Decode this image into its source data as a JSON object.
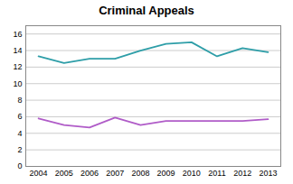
{
  "chart_data": {
    "type": "line",
    "title": "Criminal Appeals",
    "x": [
      2004,
      2005,
      2006,
      2007,
      2008,
      2009,
      2010,
      2011,
      2012,
      2013
    ],
    "series": [
      {
        "color": "#2E9EA8",
        "values": [
          13.3,
          12.5,
          13.0,
          13.0,
          14.0,
          14.8,
          15.0,
          13.3,
          14.3,
          13.8
        ]
      },
      {
        "color": "#B05CC8",
        "values": [
          5.8,
          5.0,
          4.7,
          5.9,
          5.0,
          5.5,
          5.5,
          5.5,
          5.5,
          5.7
        ]
      }
    ],
    "xlim": [
      2003.5,
      2013.5
    ],
    "xticks": [
      2004,
      2005,
      2006,
      2007,
      2008,
      2009,
      2010,
      2011,
      2012,
      2013
    ],
    "ylim": [
      0,
      17
    ],
    "yticks": [
      0,
      2,
      4,
      6,
      8,
      10,
      12,
      14,
      16
    ],
    "grid": "y"
  }
}
